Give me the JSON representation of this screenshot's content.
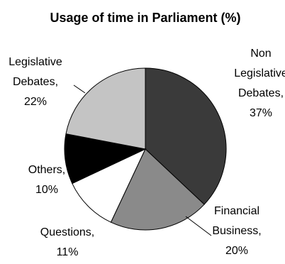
{
  "chart_data": {
    "type": "pie",
    "title": "Usage of time in Parliament (%)",
    "slices": [
      {
        "name": "Non Legislative Debates",
        "value": 37,
        "label": "37%",
        "label_lines": [
          "Non",
          "Legislative",
          "Debates,",
          "37%"
        ],
        "color": "#3a3a3a"
      },
      {
        "name": "Financial Business",
        "value": 20,
        "label": "20%",
        "label_lines": [
          "Financial",
          "Business,",
          "20%"
        ],
        "color": "#8a8a8a"
      },
      {
        "name": "Questions",
        "value": 11,
        "label": "11%",
        "label_lines": [
          "Questions,",
          "11%"
        ],
        "color": "#ffffff"
      },
      {
        "name": "Others",
        "value": 10,
        "label": "10%",
        "label_lines": [
          "Others,",
          "10%"
        ],
        "color": "#000000"
      },
      {
        "name": "Legislative Debates",
        "value": 22,
        "label": "22%",
        "label_lines": [
          "Legislative",
          "Debates,",
          "22%"
        ],
        "color": "#c4c4c4"
      }
    ]
  }
}
